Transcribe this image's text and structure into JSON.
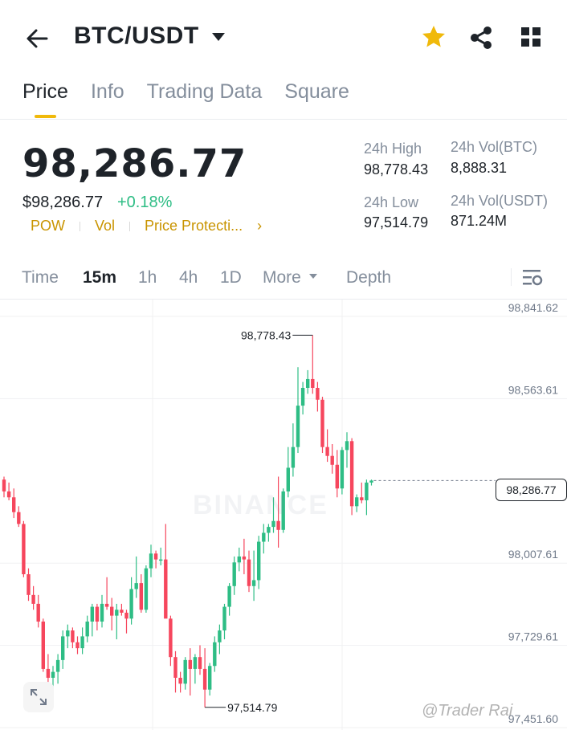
{
  "header": {
    "pair": "BTC/USDT",
    "icons": {
      "back": "back-arrow-icon",
      "caret": "caret-down-icon",
      "favorite": "star-icon",
      "share": "share-icon",
      "more": "grid-icon"
    },
    "favorite_color": "#f0b90b"
  },
  "tabs": [
    {
      "label": "Price",
      "active": true
    },
    {
      "label": "Info",
      "active": false
    },
    {
      "label": "Trading Data",
      "active": false
    },
    {
      "label": "Square",
      "active": false
    }
  ],
  "ticker": {
    "last_price": "98,286.77",
    "usd_price": "$98,286.77",
    "change_pct": "+0.18%",
    "tags": [
      "POW",
      "Vol",
      "Price Protecti..."
    ],
    "tags_more": "›",
    "high_label": "24h High",
    "high_value": "98,778.43",
    "low_label": "24h Low",
    "low_value": "97,514.79",
    "vol_btc_label": "24h Vol(BTC)",
    "vol_btc_value": "8,888.31",
    "vol_usdt_label": "24h Vol(USDT)",
    "vol_usdt_value": "871.24M",
    "up_color": "#2ebd85",
    "down_color": "#f6465d"
  },
  "intervals": {
    "items": [
      {
        "label": "Time",
        "active": false
      },
      {
        "label": "15m",
        "active": true
      },
      {
        "label": "1h",
        "active": false
      },
      {
        "label": "4h",
        "active": false
      },
      {
        "label": "1D",
        "active": false
      },
      {
        "label": "More",
        "active": false
      },
      {
        "label": "Depth",
        "active": false
      }
    ]
  },
  "chart": {
    "y_ticks": [
      "98,841.62",
      "98,563.61",
      "98,007.61",
      "97,729.61",
      "97,451.60"
    ],
    "high_annotation": "98,778.43",
    "low_annotation": "97,514.79",
    "current_price": "98,286.77",
    "watermark": "BINANCE",
    "credit": "@Trader Rai"
  },
  "chart_data": {
    "type": "candlestick",
    "ylim": [
      97451.6,
      98841.62
    ],
    "ohlc": [
      [
        98290,
        98300,
        98230,
        98250
      ],
      [
        98250,
        98280,
        98220,
        98230
      ],
      [
        98230,
        98260,
        98160,
        98180
      ],
      [
        98180,
        98200,
        98130,
        98140
      ],
      [
        98140,
        98150,
        97960,
        97970
      ],
      [
        97970,
        97990,
        97880,
        97900
      ],
      [
        97900,
        97930,
        97850,
        97870
      ],
      [
        97870,
        97900,
        97790,
        97810
      ],
      [
        97810,
        97820,
        97640,
        97650
      ],
      [
        97650,
        97700,
        97560,
        97620
      ],
      [
        97620,
        97660,
        97580,
        97640
      ],
      [
        97640,
        97700,
        97600,
        97680
      ],
      [
        97680,
        97780,
        97650,
        97760
      ],
      [
        97760,
        97800,
        97720,
        97780
      ],
      [
        97780,
        97790,
        97720,
        97740
      ],
      [
        97740,
        97760,
        97700,
        97720
      ],
      [
        97720,
        97790,
        97700,
        97760
      ],
      [
        97760,
        97830,
        97740,
        97810
      ],
      [
        97810,
        97870,
        97760,
        97860
      ],
      [
        97860,
        97870,
        97780,
        97810
      ],
      [
        97810,
        97900,
        97790,
        97870
      ],
      [
        97870,
        97960,
        97850,
        97860
      ],
      [
        97860,
        97890,
        97780,
        97830
      ],
      [
        97830,
        97870,
        97750,
        97850
      ],
      [
        97850,
        97870,
        97830,
        97840
      ],
      [
        97840,
        97850,
        97770,
        97820
      ],
      [
        97820,
        97960,
        97800,
        97920
      ],
      [
        97920,
        98030,
        97890,
        97940
      ],
      [
        97940,
        97970,
        97840,
        97850
      ],
      [
        97850,
        98000,
        97840,
        97990
      ],
      [
        97990,
        98070,
        97960,
        98040
      ],
      [
        98040,
        98050,
        97990,
        98020
      ],
      [
        98020,
        98060,
        98000,
        98020
      ],
      [
        98020,
        98140,
        97830,
        97820
      ],
      [
        97820,
        97830,
        97660,
        97690
      ],
      [
        97690,
        97710,
        97570,
        97620
      ],
      [
        97620,
        97640,
        97570,
        97600
      ],
      [
        97600,
        97690,
        97580,
        97680
      ],
      [
        97680,
        97720,
        97560,
        97650
      ],
      [
        97650,
        97700,
        97600,
        97690
      ],
      [
        97690,
        97730,
        97630,
        97650
      ],
      [
        97650,
        97720,
        97520,
        97580
      ],
      [
        97580,
        97670,
        97560,
        97660
      ],
      [
        97660,
        97760,
        97640,
        97740
      ],
      [
        97740,
        97800,
        97700,
        97780
      ],
      [
        97780,
        97870,
        97750,
        97860
      ],
      [
        97860,
        97940,
        97830,
        97930
      ],
      [
        97930,
        98030,
        97900,
        98010
      ],
      [
        98010,
        98060,
        97980,
        98030
      ],
      [
        98030,
        98090,
        97970,
        98020
      ],
      [
        98020,
        98050,
        97910,
        97930
      ],
      [
        97930,
        98050,
        97880,
        97950
      ],
      [
        97950,
        98100,
        97920,
        98080
      ],
      [
        98080,
        98140,
        98040,
        98110
      ],
      [
        98110,
        98140,
        98080,
        98130
      ],
      [
        98130,
        98230,
        98110,
        98150
      ],
      [
        98150,
        98300,
        98060,
        98120
      ],
      [
        98120,
        98260,
        98110,
        98250
      ],
      [
        98250,
        98400,
        98230,
        98330
      ],
      [
        98330,
        98480,
        98300,
        98400
      ],
      [
        98400,
        98670,
        98380,
        98540
      ],
      [
        98540,
        98620,
        98510,
        98600
      ],
      [
        98600,
        98660,
        98580,
        98630
      ],
      [
        98630,
        98778,
        98580,
        98600
      ],
      [
        98600,
        98620,
        98520,
        98560
      ],
      [
        98560,
        98570,
        98380,
        98400
      ],
      [
        98400,
        98460,
        98350,
        98370
      ],
      [
        98370,
        98410,
        98310,
        98340
      ],
      [
        98340,
        98390,
        98230,
        98260
      ],
      [
        98260,
        98400,
        98240,
        98390
      ],
      [
        98390,
        98450,
        98330,
        98420
      ],
      [
        98420,
        98430,
        98170,
        98200
      ],
      [
        98200,
        98240,
        98180,
        98230
      ],
      [
        98230,
        98280,
        98210,
        98220
      ],
      [
        98220,
        98290,
        98170,
        98280
      ],
      [
        98280,
        98290,
        98270,
        98286.77
      ]
    ]
  }
}
